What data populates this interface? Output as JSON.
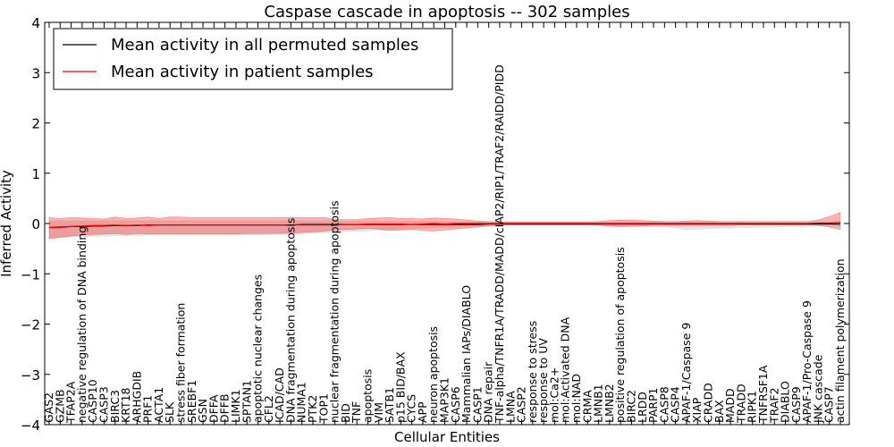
{
  "chart_data": {
    "type": "line",
    "title": "Caspase cascade in apoptosis -- 302 samples",
    "xlabel": "Cellular Entities",
    "ylabel": "Inferred Activity",
    "ylim": [
      -4,
      4
    ],
    "yticks": [
      -4,
      -3,
      -2,
      -1,
      0,
      1,
      2,
      3,
      4
    ],
    "yticklabels": [
      "−4",
      "−3",
      "−2",
      "−1",
      "0",
      "1",
      "2",
      "3",
      "4"
    ],
    "grid": false,
    "legend_position": "top-left",
    "categories": [
      "GAS2",
      "GZMB",
      "TFAP2A",
      "negative regulation of DNA binding",
      "CASP10",
      "CASP3",
      "BIRC3",
      "KRT18",
      "ARHGDIB",
      "PRF1",
      "ACTA1",
      "SLK",
      "stress fiber formation",
      "SREBF1",
      "GSN",
      "DFFA",
      "DFFB",
      "LIMK1",
      "SPTAN1",
      "apoptotic nuclear changes",
      "CFL2",
      "ICAD/CAD",
      "DNA fragmentation during apoptosis",
      "NUMA1",
      "PTK2",
      "TOP1",
      "nuclear fragmentation during apoptosis",
      "BID",
      "TNF",
      "apoptosis",
      "VIM",
      "SATB1",
      "p15 BID/BAX",
      "CYCS",
      "APP",
      "neuron apoptosis",
      "MAP3K1",
      "CASP6",
      "Mammalian IAPs/DIABLO",
      "CASP1",
      "DNA repair",
      "TNF-alpha/TNFR1A/TRADD/MADD/cIAP2/RIP1/TRAF2/RAIDD/PIDD",
      "LMNA",
      "CASP2",
      "response to stress",
      "response to UV",
      "mol:Ca2+",
      "mol:Activated DNA",
      "mol:NAD",
      "CRMA",
      "LMNB1",
      "LMNB2",
      "positive regulation of apoptosis",
      "BIRC2",
      "LRDD",
      "PARP1",
      "CASP8",
      "CASP4",
      "APAF-1/Caspase 9",
      "XIAP",
      "CRADD",
      "BAX",
      "MADD",
      "TRADD",
      "RIPK1",
      "TNFRSF1A",
      "TRAF2",
      "DIABLO",
      "CASP9",
      "APAF-1/Pro-Caspase 9",
      "JNK cascade",
      "CASP7",
      "actin filament polymerization"
    ],
    "series": [
      {
        "name": "Mean activity in all permuted samples",
        "color": "#000000",
        "values": [
          -0.08,
          -0.07,
          -0.06,
          -0.06,
          -0.05,
          -0.05,
          -0.04,
          -0.04,
          -0.04,
          -0.03,
          -0.03,
          -0.03,
          -0.03,
          -0.03,
          -0.03,
          -0.03,
          -0.03,
          -0.03,
          -0.03,
          -0.03,
          -0.03,
          -0.03,
          -0.03,
          -0.02,
          -0.02,
          -0.02,
          -0.02,
          -0.02,
          -0.02,
          -0.02,
          -0.02,
          -0.02,
          -0.02,
          -0.02,
          -0.02,
          -0.02,
          -0.02,
          -0.02,
          -0.02,
          -0.02,
          -0.01,
          -0.01,
          -0.01,
          -0.01,
          -0.01,
          -0.01,
          -0.01,
          -0.01,
          -0.01,
          -0.01,
          -0.01,
          -0.01,
          -0.01,
          -0.01,
          -0.01,
          -0.01,
          -0.01,
          -0.01,
          -0.01,
          -0.01,
          -0.01,
          -0.01,
          -0.01,
          -0.01,
          -0.01,
          -0.01,
          -0.01,
          -0.01,
          -0.01,
          -0.01,
          -0.01,
          -0.01,
          -0.01
        ],
        "band_low": [
          -0.3,
          -0.28,
          -0.27,
          -0.27,
          -0.26,
          -0.26,
          -0.25,
          -0.25,
          -0.25,
          -0.24,
          -0.24,
          -0.24,
          -0.24,
          -0.24,
          -0.24,
          -0.24,
          -0.24,
          -0.24,
          -0.23,
          -0.23,
          -0.23,
          -0.22,
          -0.22,
          -0.21,
          -0.2,
          -0.19,
          -0.18,
          -0.17,
          -0.16,
          -0.15,
          -0.14,
          -0.13,
          -0.12,
          -0.11,
          -0.1,
          -0.09,
          -0.08,
          -0.08,
          -0.07,
          -0.06,
          -0.05,
          -0.04,
          -0.04,
          -0.04,
          -0.04,
          -0.04,
          -0.04,
          -0.04,
          -0.04,
          -0.04,
          -0.06,
          -0.06,
          -0.07,
          -0.07,
          -0.07,
          -0.07,
          -0.07,
          -0.1,
          -0.13,
          -0.12,
          -0.11,
          -0.1,
          -0.1,
          -0.09,
          -0.09,
          -0.08,
          -0.08,
          -0.07,
          -0.07,
          -0.06,
          -0.05,
          -0.05,
          -0.05
        ],
        "band_high": [
          0.06,
          0.06,
          0.06,
          0.06,
          0.06,
          0.06,
          0.06,
          0.06,
          0.06,
          0.06,
          0.06,
          0.06,
          0.06,
          0.06,
          0.06,
          0.06,
          0.06,
          0.06,
          0.06,
          0.06,
          0.06,
          0.06,
          0.06,
          0.06,
          0.06,
          0.06,
          0.06,
          0.05,
          0.05,
          0.05,
          0.05,
          0.05,
          0.05,
          0.05,
          0.05,
          0.05,
          0.04,
          0.04,
          0.04,
          0.04,
          0.03,
          0.03,
          0.03,
          0.03,
          0.03,
          0.03,
          0.03,
          0.03,
          0.03,
          0.03,
          0.04,
          0.04,
          0.04,
          0.04,
          0.04,
          0.04,
          0.04,
          0.04,
          0.04,
          0.04,
          0.04,
          0.04,
          0.04,
          0.04,
          0.04,
          0.04,
          0.04,
          0.04,
          0.04,
          0.04,
          0.04,
          0.04,
          0.04
        ]
      },
      {
        "name": "Mean activity in patient samples",
        "color": "#ff0000",
        "values": [
          -0.08,
          -0.08,
          -0.06,
          -0.05,
          -0.04,
          -0.04,
          -0.03,
          -0.04,
          -0.03,
          -0.04,
          -0.03,
          -0.03,
          -0.03,
          -0.03,
          -0.03,
          -0.03,
          -0.03,
          -0.03,
          -0.03,
          -0.03,
          -0.03,
          -0.03,
          -0.03,
          -0.03,
          -0.03,
          -0.03,
          -0.03,
          -0.02,
          -0.02,
          -0.01,
          -0.01,
          -0.01,
          -0.01,
          -0.02,
          -0.01,
          0.0,
          -0.01,
          0.0,
          0.0,
          0.0,
          0.0,
          0.0,
          0.0,
          0.0,
          0.0,
          0.0,
          0.0,
          0.0,
          0.0,
          0.0,
          0.0,
          0.0,
          0.0,
          0.0,
          0.0,
          0.0,
          0.0,
          0.0,
          0.0,
          0.0,
          0.0,
          0.0,
          0.0,
          0.0,
          0.0,
          0.0,
          0.0,
          0.0,
          0.0,
          0.0,
          0.01,
          0.01,
          0.02
        ],
        "band_low": [
          -0.3,
          -0.28,
          -0.25,
          -0.23,
          -0.22,
          -0.21,
          -0.2,
          -0.22,
          -0.2,
          -0.21,
          -0.21,
          -0.21,
          -0.21,
          -0.21,
          -0.21,
          -0.21,
          -0.21,
          -0.21,
          -0.2,
          -0.2,
          -0.2,
          -0.2,
          -0.19,
          -0.18,
          -0.17,
          -0.15,
          -0.13,
          -0.12,
          -0.11,
          -0.1,
          -0.11,
          -0.14,
          -0.13,
          -0.12,
          -0.14,
          -0.15,
          -0.13,
          -0.11,
          -0.09,
          -0.07,
          -0.05,
          -0.03,
          -0.03,
          -0.03,
          -0.03,
          -0.03,
          -0.03,
          -0.03,
          -0.03,
          -0.03,
          -0.03,
          -0.05,
          -0.06,
          -0.05,
          -0.05,
          -0.04,
          -0.04,
          -0.04,
          -0.04,
          -0.04,
          -0.04,
          -0.04,
          -0.04,
          -0.03,
          -0.03,
          -0.03,
          -0.03,
          -0.03,
          -0.03,
          -0.03,
          -0.04,
          -0.07,
          -0.12
        ],
        "band_high": [
          0.12,
          0.1,
          0.12,
          0.11,
          0.1,
          0.09,
          0.13,
          0.1,
          0.11,
          0.13,
          0.1,
          0.13,
          0.13,
          0.12,
          0.12,
          0.12,
          0.12,
          0.12,
          0.12,
          0.12,
          0.12,
          0.12,
          0.12,
          0.12,
          0.12,
          0.12,
          0.08,
          0.08,
          0.08,
          0.1,
          0.11,
          0.12,
          0.1,
          0.1,
          0.09,
          0.11,
          0.1,
          0.09,
          0.07,
          0.05,
          0.04,
          0.03,
          0.03,
          0.03,
          0.03,
          0.03,
          0.03,
          0.03,
          0.03,
          0.03,
          0.04,
          0.06,
          0.07,
          0.07,
          0.06,
          0.05,
          0.04,
          0.04,
          0.05,
          0.06,
          0.05,
          0.04,
          0.04,
          0.04,
          0.04,
          0.04,
          0.04,
          0.04,
          0.04,
          0.04,
          0.07,
          0.14,
          0.22
        ]
      }
    ]
  }
}
